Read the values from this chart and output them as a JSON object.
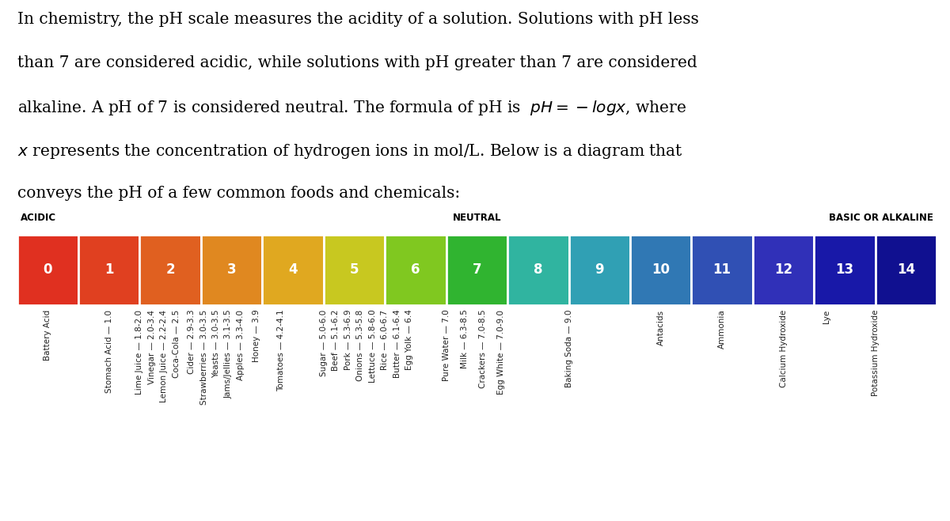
{
  "background_color": "#ffffff",
  "label_acidic": "ACIDIC",
  "label_neutral": "NEUTRAL",
  "label_basic": "BASIC OR ALKALINE",
  "ph_values": [
    0,
    1,
    2,
    3,
    4,
    5,
    6,
    7,
    8,
    9,
    10,
    11,
    12,
    13,
    14
  ],
  "ph_colors": [
    "#e03020",
    "#e04020",
    "#e06020",
    "#e08820",
    "#e0a820",
    "#c8c820",
    "#80c820",
    "#30b430",
    "#30b4a0",
    "#30a0b4",
    "#3078b4",
    "#3050b4",
    "#3030b8",
    "#1818a8",
    "#101090"
  ],
  "items": [
    {
      "label": "Battery Acid",
      "col": 0.5
    },
    {
      "label": "Stomach Acid — 1.0",
      "col": 1.5
    },
    {
      "label": "Lime Juice — 1.8-2.0",
      "col": 2.0
    },
    {
      "label": "Vinegar — 2.0-3.4",
      "col": 2.2
    },
    {
      "label": "Lemon Juice — 2.2-2.4",
      "col": 2.4
    },
    {
      "label": "Coca-Cola — 2.5",
      "col": 2.6
    },
    {
      "label": "Cider — 2.9-3.3",
      "col": 2.85
    },
    {
      "label": "Strawberries — 3.0-3.5",
      "col": 3.05
    },
    {
      "label": "Yeasts — 3.0-3.5",
      "col": 3.25
    },
    {
      "label": "Jams/Jellies — 3.1-3.5",
      "col": 3.45
    },
    {
      "label": "Apples — 3.3-4.0",
      "col": 3.65
    },
    {
      "label": "Honey — 3.9",
      "col": 3.9
    },
    {
      "label": "Tomatoes — 4.2-4.1",
      "col": 4.3
    },
    {
      "label": "Sugar — 5.0-6.0",
      "col": 5.0
    },
    {
      "label": "Beef — 5.1-6.2",
      "col": 5.2
    },
    {
      "label": "Pork — 5.3-6.9",
      "col": 5.4
    },
    {
      "label": "Onions — 5.3-5.8",
      "col": 5.6
    },
    {
      "label": "Lettuce — 5.8-6.0",
      "col": 5.8
    },
    {
      "label": "Rice — 6.0-6.7",
      "col": 6.0
    },
    {
      "label": "Butter — 6.1-6.4",
      "col": 6.2
    },
    {
      "label": "Egg Yolk — 6.4",
      "col": 6.4
    },
    {
      "label": "Pure Water — 7.0",
      "col": 7.0
    },
    {
      "label": "Milk — 6.3-8.5",
      "col": 7.3
    },
    {
      "label": "Crackers — 7.0-8.5",
      "col": 7.6
    },
    {
      "label": "Egg White — 7.0-9.0",
      "col": 7.9
    },
    {
      "label": "Baking Soda — 9.0",
      "col": 9.0
    },
    {
      "label": "Antacids",
      "col": 10.5
    },
    {
      "label": "Ammonia",
      "col": 11.5
    },
    {
      "label": "Calcium Hydroxide",
      "col": 12.5
    },
    {
      "label": "Lye",
      "col": 13.2
    },
    {
      "label": "Potassium Hydroxide",
      "col": 14.0
    }
  ],
  "paragraph_lines": [
    "In chemistry, the pH scale measures the acidity of a solution. Solutions with pH less",
    "than 7 are considered acidic, while solutions with pH greater than 7 are considered",
    "alkaline. A pH of 7 is considered neutral. The formula of pH is  $pH = -logx$, where",
    "$x$ represents the concentration of hydrogen ions in mol/L. Below is a diagram that",
    "conveys the pH of a few common foods and chemicals:"
  ],
  "text_fontsize": 14.5,
  "bar_fontsize": 12,
  "label_fontsize": 7.5,
  "header_fontsize": 8.5
}
